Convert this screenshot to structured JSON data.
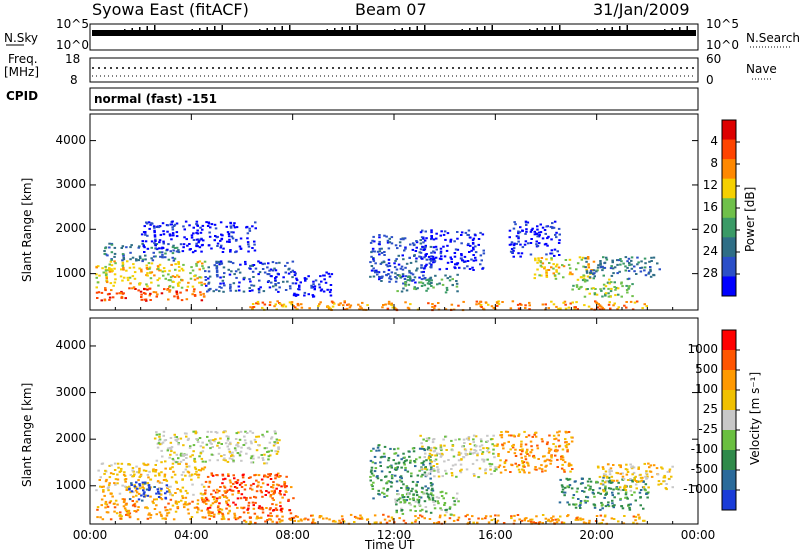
{
  "header": {
    "station": "Syowa East (fitACF)",
    "beam": "Beam 07",
    "date": "31/Jan/2009"
  },
  "panels": {
    "nsky": {
      "label": "N.Sky",
      "tick_top": "10^5",
      "tick_bottom": "10^0"
    },
    "nsearch": {
      "label": "N.Search",
      "tick_top": "10^5",
      "tick_bottom": "10^0"
    },
    "freq": {
      "label_line1": "Freq.",
      "label_line2": "[MHz]",
      "tick_top": "18",
      "tick_bottom": "8"
    },
    "nave": {
      "label": "Nave",
      "tick_top": "60",
      "tick_bottom": "0"
    },
    "cpid": {
      "label": "CPID",
      "value": "normal (fast) -151"
    }
  },
  "chart_data": [
    {
      "type": "heatmap",
      "title": "",
      "xlabel": "Time UT",
      "ylabel": "Slant Range [km]",
      "x_ticks": [
        "00:00",
        "04:00",
        "08:00",
        "12:00",
        "16:00",
        "20:00",
        "00:00"
      ],
      "y_ticks": [
        "1000",
        "2000",
        "3000",
        "4000"
      ],
      "xlim": [
        0,
        24
      ],
      "ylim": [
        180,
        4600
      ],
      "colorbar": {
        "label": "Power [dB]",
        "ticks": [
          "4",
          "8",
          "12",
          "16",
          "20",
          "24",
          "28"
        ],
        "colors": [
          "#0000ff",
          "#2b4fc8",
          "#2f6e86",
          "#3a9a66",
          "#6fc04a",
          "#f5d000",
          "#ff8800",
          "#ff4400",
          "#dd0000"
        ]
      },
      "echo_regions": [
        {
          "t0": 0.2,
          "t1": 4.5,
          "r0": 400,
          "r1": 700,
          "c": 7
        },
        {
          "t0": 0.2,
          "t1": 4.5,
          "r0": 700,
          "r1": 1300,
          "c": 5
        },
        {
          "t0": 0.5,
          "t1": 3.5,
          "r0": 1300,
          "r1": 1700,
          "c": 2
        },
        {
          "t0": 2.0,
          "t1": 6.5,
          "r0": 1500,
          "r1": 2200,
          "c": 0
        },
        {
          "t0": 4.5,
          "t1": 8.0,
          "r0": 600,
          "r1": 1300,
          "c": 1
        },
        {
          "t0": 8.0,
          "t1": 9.5,
          "r0": 500,
          "r1": 1100,
          "c": 0
        },
        {
          "t0": 11.0,
          "t1": 13.5,
          "r0": 800,
          "r1": 1900,
          "c": 1
        },
        {
          "t0": 12.0,
          "t1": 14.5,
          "r0": 600,
          "r1": 1000,
          "c": 3
        },
        {
          "t0": 13.0,
          "t1": 15.5,
          "r0": 1100,
          "r1": 2000,
          "c": 0
        },
        {
          "t0": 16.5,
          "t1": 18.5,
          "r0": 1400,
          "r1": 2200,
          "c": 0
        },
        {
          "t0": 17.5,
          "t1": 20.0,
          "r0": 900,
          "r1": 1400,
          "c": 5
        },
        {
          "t0": 19.0,
          "t1": 21.5,
          "r0": 500,
          "r1": 900,
          "c": 4
        },
        {
          "t0": 19.5,
          "t1": 22.5,
          "r0": 900,
          "r1": 1400,
          "c": 2
        },
        {
          "t0": 6.0,
          "t1": 22.0,
          "r0": 200,
          "r1": 400,
          "c": 6
        }
      ]
    },
    {
      "type": "heatmap",
      "title": "",
      "xlabel": "Time UT",
      "ylabel": "Slant Range [km]",
      "x_ticks": [
        "00:00",
        "04:00",
        "08:00",
        "12:00",
        "16:00",
        "20:00",
        "00:00"
      ],
      "y_ticks": [
        "1000",
        "2000",
        "3000",
        "4000"
      ],
      "xlim": [
        0,
        24
      ],
      "ylim": [
        180,
        4600
      ],
      "colorbar": {
        "label": "Velocity [m s⁻¹]",
        "ticks": [
          "1000",
          "500",
          "100",
          "25",
          "-25",
          "-100",
          "-500",
          "-1000"
        ],
        "colors": [
          "#1a3cd8",
          "#2a6a9a",
          "#2f8a4a",
          "#6abf40",
          "#c8c8c8",
          "#f0c000",
          "#ff9900",
          "#ff5500",
          "#ff0000"
        ]
      },
      "echo_regions": [
        {
          "t0": 0.2,
          "t1": 5.5,
          "r0": 300,
          "r1": 800,
          "c": 6
        },
        {
          "t0": 0.2,
          "t1": 4.5,
          "r0": 800,
          "r1": 1500,
          "c": 5
        },
        {
          "t0": 1.5,
          "t1": 3.0,
          "r0": 700,
          "r1": 1100,
          "c": 0
        },
        {
          "t0": 2.5,
          "t1": 7.5,
          "r0": 1500,
          "r1": 2200,
          "c": 4
        },
        {
          "t0": 4.5,
          "t1": 8.0,
          "r0": 300,
          "r1": 1300,
          "c": 7
        },
        {
          "t0": 11.0,
          "t1": 13.5,
          "r0": 700,
          "r1": 1900,
          "c": 2
        },
        {
          "t0": 12.0,
          "t1": 14.5,
          "r0": 400,
          "r1": 900,
          "c": 3
        },
        {
          "t0": 13.0,
          "t1": 16.0,
          "r0": 1200,
          "r1": 2100,
          "c": 4
        },
        {
          "t0": 16.0,
          "t1": 19.0,
          "r0": 1300,
          "r1": 2200,
          "c": 6
        },
        {
          "t0": 18.5,
          "t1": 22.0,
          "r0": 500,
          "r1": 1200,
          "c": 2
        },
        {
          "t0": 20.0,
          "t1": 23.0,
          "r0": 900,
          "r1": 1500,
          "c": 5
        },
        {
          "t0": 6.0,
          "t1": 22.0,
          "r0": 200,
          "r1": 400,
          "c": 6
        }
      ]
    }
  ]
}
